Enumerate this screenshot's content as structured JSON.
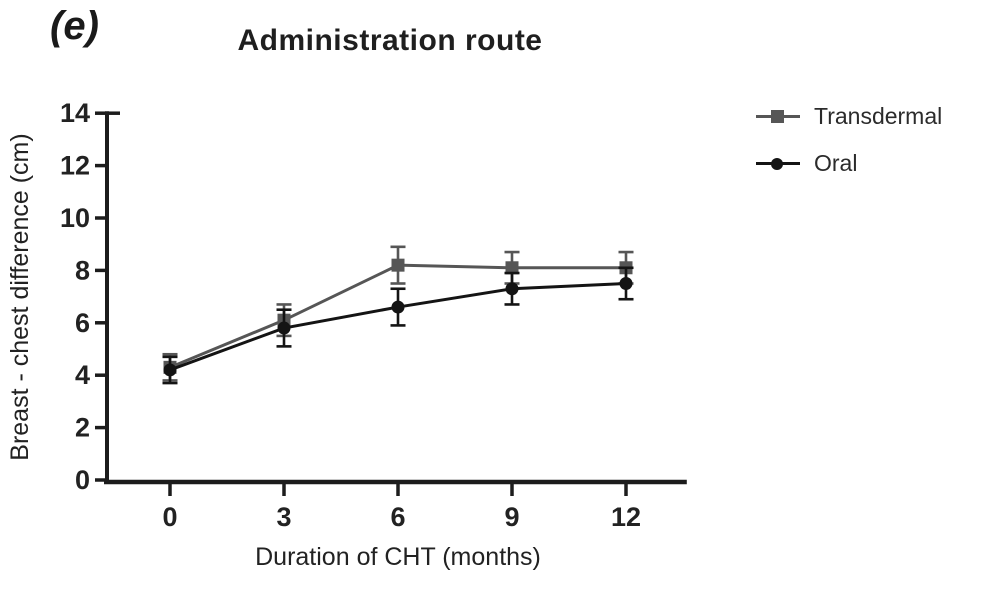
{
  "figure": {
    "panel_label": "(e)",
    "title": "Administration route"
  },
  "chart_data": {
    "type": "line",
    "panel_label": "(e)",
    "title": "Administration route",
    "xlabel": "Duration of CHT (months)",
    "ylabel": "Breast - chest difference (cm)",
    "x": [
      0,
      3,
      6,
      9,
      12
    ],
    "xticks": [
      0,
      3,
      6,
      9,
      12
    ],
    "yticks": [
      0,
      2,
      4,
      6,
      8,
      10,
      12,
      14
    ],
    "xlim": [
      -1.7,
      13.6
    ],
    "ylim": [
      0,
      14
    ],
    "grid": false,
    "error_bars": true,
    "legend_position": "right",
    "series": [
      {
        "name": "Transdermal",
        "marker": "square",
        "color": "#565656",
        "values": [
          4.3,
          6.1,
          8.2,
          8.1,
          8.1
        ],
        "error": [
          0.5,
          0.6,
          0.7,
          0.6,
          0.6
        ]
      },
      {
        "name": "Oral",
        "marker": "circle",
        "color": "#141414",
        "values": [
          4.2,
          5.8,
          6.6,
          7.3,
          7.5
        ],
        "error": [
          0.5,
          0.7,
          0.7,
          0.6,
          0.6
        ]
      }
    ]
  }
}
